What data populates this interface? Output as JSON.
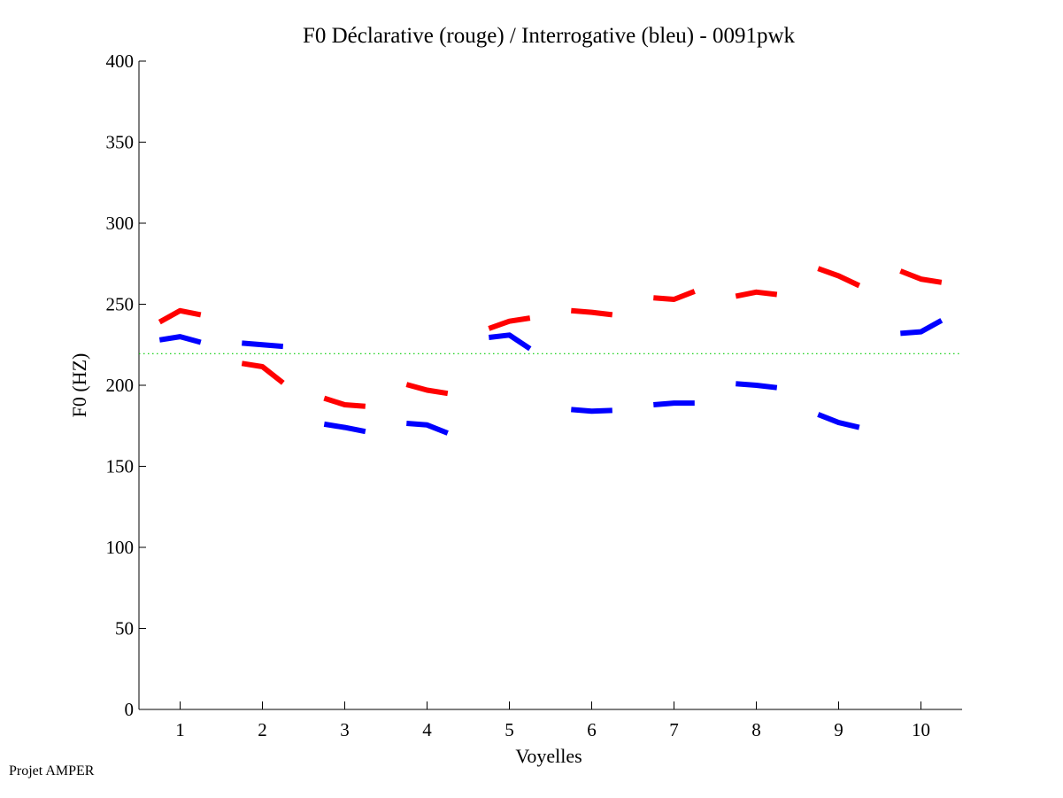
{
  "chart_data": {
    "type": "line",
    "title": "F0 Déclarative (rouge) / Interrogative (bleu) - 0091pwk",
    "xlabel": "Voyelles",
    "ylabel": "F0 (HZ)",
    "xlim": [
      0.5,
      10.5
    ],
    "ylim": [
      0,
      400
    ],
    "x_ticks": [
      1,
      2,
      3,
      4,
      5,
      6,
      7,
      8,
      9,
      10
    ],
    "x_tick_labels": [
      "1",
      "2",
      "3",
      "4",
      "5",
      "6",
      "7",
      "8",
      "9",
      "10"
    ],
    "y_ticks": [
      0,
      50,
      100,
      150,
      200,
      250,
      300,
      350,
      400
    ],
    "y_tick_labels": [
      "0",
      "50",
      "100",
      "150",
      "200",
      "250",
      "300",
      "350",
      "400"
    ],
    "grid": false,
    "reference_line": {
      "y": 219.5,
      "color": "#00cc00",
      "style": "dotted"
    },
    "segment_offsets": [
      -0.25,
      0,
      0.25
    ],
    "series": [
      {
        "name": "Déclarative (rouge)",
        "color": "#ff0000",
        "segments": [
          {
            "vowel": 1,
            "values": [
              239,
              246,
              243.5
            ]
          },
          {
            "vowel": 2,
            "values": [
              213.5,
              211.5,
              201.5
            ]
          },
          {
            "vowel": 3,
            "values": [
              192,
              188,
              187
            ]
          },
          {
            "vowel": 4,
            "values": [
              200.5,
              197,
              195
            ]
          },
          {
            "vowel": 5,
            "values": [
              235,
              239.5,
              241.5
            ]
          },
          {
            "vowel": 6,
            "values": [
              246,
              245,
              243.5
            ]
          },
          {
            "vowel": 7,
            "values": [
              254,
              253,
              258
            ]
          },
          {
            "vowel": 8,
            "values": [
              255,
              257.5,
              256
            ]
          },
          {
            "vowel": 9,
            "values": [
              272,
              267.5,
              261.5
            ]
          },
          {
            "vowel": 10,
            "values": [
              270.5,
              265.5,
              263.5
            ]
          }
        ]
      },
      {
        "name": "Interrogative (bleu)",
        "color": "#0000ff",
        "segments": [
          {
            "vowel": 1,
            "values": [
              228,
              230,
              226.5
            ]
          },
          {
            "vowel": 2,
            "values": [
              226,
              225,
              224
            ]
          },
          {
            "vowel": 3,
            "values": [
              176,
              174,
              171.5
            ]
          },
          {
            "vowel": 4,
            "values": [
              176.5,
              175.5,
              170.5
            ]
          },
          {
            "vowel": 5,
            "values": [
              229.5,
              231,
              222.5
            ]
          },
          {
            "vowel": 6,
            "values": [
              185,
              184,
              184.5
            ]
          },
          {
            "vowel": 7,
            "values": [
              188,
              189,
              189
            ]
          },
          {
            "vowel": 8,
            "values": [
              201,
              200,
              198.5
            ]
          },
          {
            "vowel": 9,
            "values": [
              182,
              177,
              174
            ]
          },
          {
            "vowel": 10,
            "values": [
              232,
              233,
              240
            ]
          }
        ]
      }
    ]
  },
  "footer": {
    "text": "Projet AMPER"
  }
}
